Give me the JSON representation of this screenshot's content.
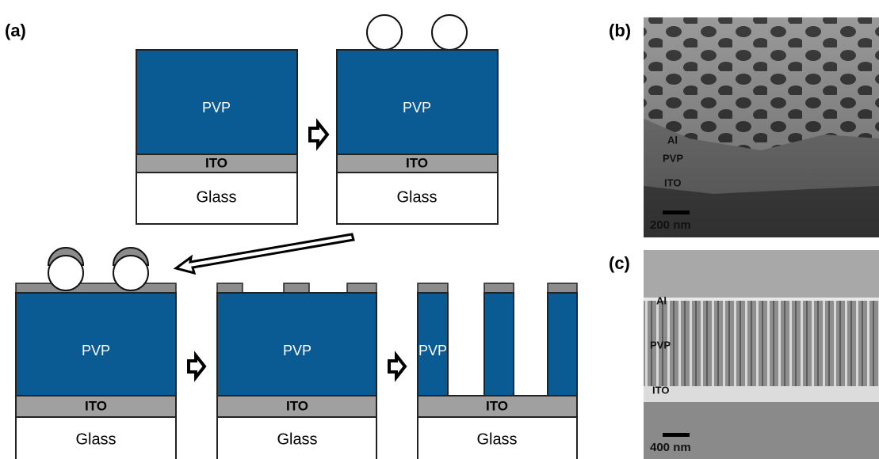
{
  "labels": {
    "a": "(a)",
    "b": "(b)",
    "c": "(c)"
  },
  "stacks": [
    {
      "pvp": "PVP",
      "ito": "ITO",
      "glass": "Glass"
    },
    {
      "pvp": "PVP",
      "ito": "ITO",
      "glass": "Glass"
    },
    {
      "pvp": "PVP",
      "ito": "ITO",
      "glass": "Glass"
    },
    {
      "pvp": "PVP",
      "ito": "ITO",
      "glass": "Glass"
    },
    {
      "pvp": "PVP",
      "ito": "ITO",
      "glass": "Glass"
    }
  ],
  "sem_b": {
    "layers": [
      "Al",
      "PVP",
      "ITO"
    ],
    "scale": "200 nm"
  },
  "sem_c": {
    "layers": [
      "Al",
      "PVP",
      "ITO"
    ],
    "scale": "400 nm"
  }
}
